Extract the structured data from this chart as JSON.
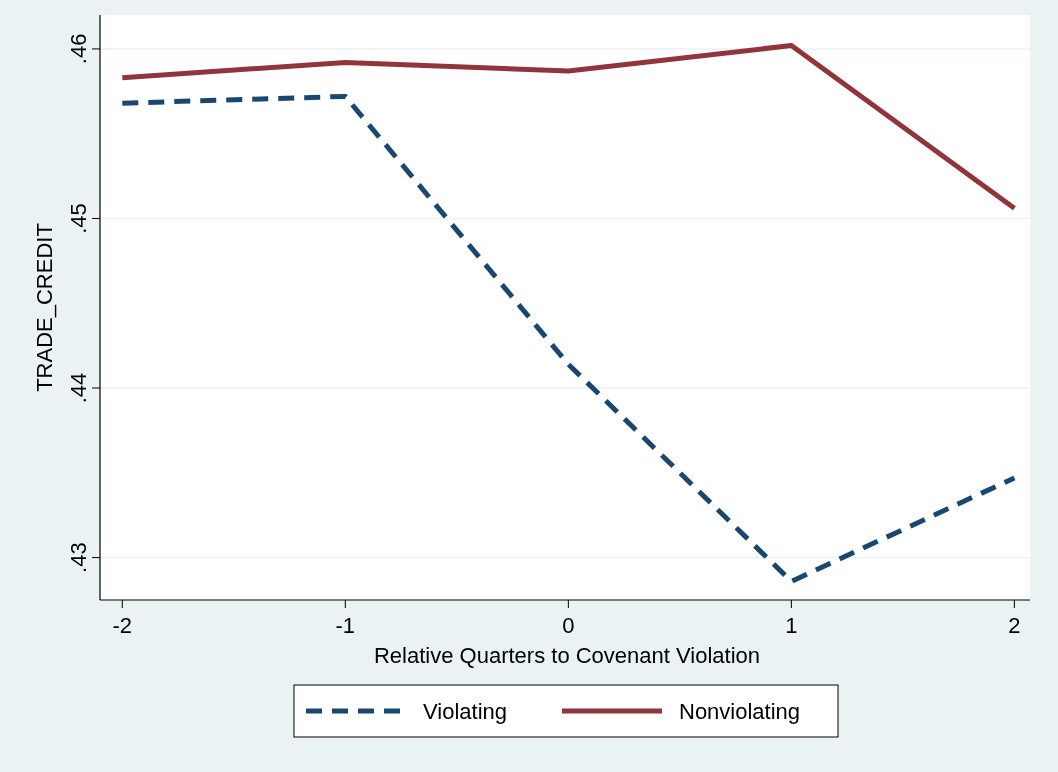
{
  "chart_data": {
    "type": "line",
    "xlabel": "Relative Quarters to Covenant Violation",
    "ylabel": "TRADE_CREDIT",
    "x": [
      -2,
      -1,
      0,
      1,
      2
    ],
    "series": [
      {
        "name": "Violating",
        "color": "#1a476f",
        "line_style": "dashed",
        "values": [
          0.4568,
          0.4572,
          0.4414,
          0.4286,
          0.4347
        ]
      },
      {
        "name": "Nonviolating",
        "color": "#90353b",
        "line_style": "solid",
        "values": [
          0.4583,
          0.4592,
          0.4587,
          0.4602,
          0.4506
        ]
      }
    ],
    "xlim": [
      -2.1,
      2.07
    ],
    "xticks": [
      -2,
      -1,
      0,
      1,
      2
    ],
    "ylim": [
      0.4275,
      0.462
    ],
    "yticks": [
      {
        "value": 0.43,
        "label": ".43"
      },
      {
        "value": 0.44,
        "label": ".44"
      },
      {
        "value": 0.45,
        "label": ".45"
      },
      {
        "value": 0.46,
        "label": ".46"
      }
    ],
    "grid": "y",
    "legend": "bottom",
    "marker": "none"
  }
}
